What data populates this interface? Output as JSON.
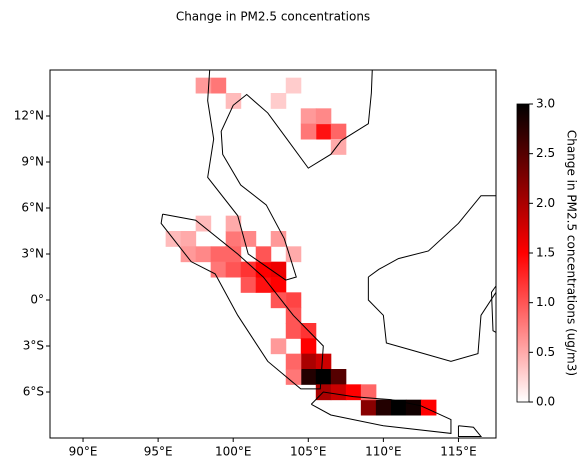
{
  "chart_data": {
    "type": "heatmap",
    "title": "Change in PM2.5 concentrations",
    "xlim": [
      87.8,
      117.5
    ],
    "ylim": [
      -9,
      15
    ],
    "xticks": [
      {
        "value": 90,
        "label": "90°E"
      },
      {
        "value": 95,
        "label": "95°E"
      },
      {
        "value": 100,
        "label": "100°E"
      },
      {
        "value": 105,
        "label": "105°E"
      },
      {
        "value": 110,
        "label": "110°E"
      },
      {
        "value": 115,
        "label": "115°E"
      }
    ],
    "yticks": [
      {
        "value": -6,
        "label": "6°S"
      },
      {
        "value": -3,
        "label": "3°S"
      },
      {
        "value": 0,
        "label": "0°"
      },
      {
        "value": 3,
        "label": "3°N"
      },
      {
        "value": 6,
        "label": "6°N"
      },
      {
        "value": 9,
        "label": "9°N"
      },
      {
        "value": 12,
        "label": "12°N"
      }
    ],
    "colorbar": {
      "label": "Change in PM2.5 concentrations (ug/m3)",
      "lim": [
        0,
        3
      ],
      "ticks": [
        {
          "value": 0,
          "label": "0.0"
        },
        {
          "value": 0.5,
          "label": "0.5"
        },
        {
          "value": 1,
          "label": "1.0"
        },
        {
          "value": 1.5,
          "label": "1.5"
        },
        {
          "value": 2,
          "label": "2.0"
        },
        {
          "value": 2.5,
          "label": "2.5"
        },
        {
          "value": 3,
          "label": "3.0"
        }
      ],
      "colors": [
        "#ffffff",
        "#ff0000",
        "#000000"
      ]
    },
    "lon": [
      96,
      97,
      97,
      98,
      99,
      99,
      100,
      101,
      101,
      102,
      102,
      103,
      103,
      104,
      103,
      104,
      104,
      105,
      105,
      105,
      106,
      105,
      106,
      107,
      106,
      107,
      108,
      109,
      110,
      111,
      112,
      113,
      109,
      104,
      104,
      103,
      100,
      101,
      100,
      102,
      98,
      100,
      103,
      104,
      106,
      107,
      105,
      106,
      105,
      107,
      99,
      98,
      100,
      103,
      104
    ],
    "lat": [
      4,
      4,
      3,
      3,
      3,
      2,
      2,
      2,
      1,
      1,
      2,
      2,
      1,
      0,
      0,
      -1,
      -2,
      -2,
      -3,
      -4,
      -4,
      -5,
      -5,
      -5,
      -6,
      -6,
      -6,
      -7,
      -7,
      -7,
      -7,
      -7,
      -6,
      -5,
      -4,
      -3,
      4,
      4,
      3,
      3,
      5,
      5,
      4,
      3,
      11,
      11,
      12,
      12,
      11,
      10,
      14,
      14,
      13,
      13,
      14
    ],
    "values": [
      0.4,
      0.5,
      0.6,
      0.7,
      0.9,
      0.8,
      1.0,
      1.2,
      1.0,
      1.4,
      1.5,
      1.6,
      1.5,
      1.1,
      1.0,
      1.0,
      1.0,
      1.2,
      1.5,
      2.0,
      1.8,
      2.8,
      3.0,
      2.5,
      2.0,
      1.8,
      1.5,
      2.2,
      2.8,
      3.0,
      2.9,
      1.5,
      0.9,
      0.8,
      0.9,
      0.6,
      0.8,
      0.7,
      0.9,
      1.0,
      0.4,
      0.5,
      0.6,
      0.5,
      1.4,
      0.9,
      0.6,
      0.7,
      0.8,
      0.5,
      0.8,
      0.6,
      0.4,
      0.3,
      0.3
    ]
  }
}
